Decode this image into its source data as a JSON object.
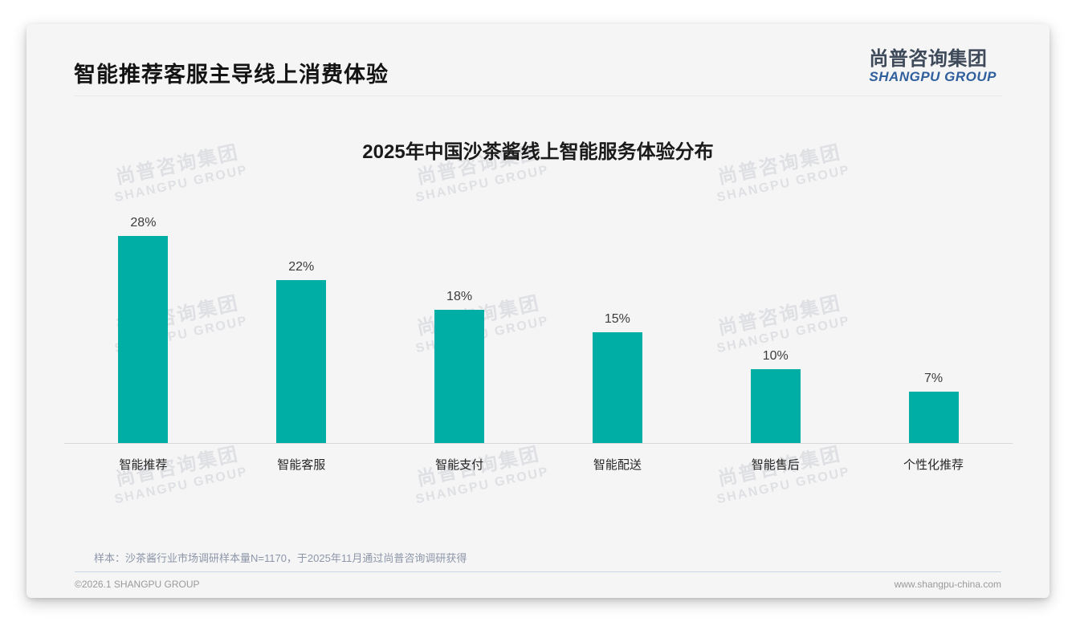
{
  "page": {
    "header": {
      "title": "智能推荐客服主导线上消费体验"
    },
    "logo": {
      "cn": "尚普咨询集团",
      "en": "SHANGPU GROUP"
    },
    "watermark": {
      "cn": "尚普咨询集团",
      "en": "SHANGPU GROUP"
    },
    "footer": {
      "note": "样本：沙茶酱行业市场调研样本量N=1170，于2025年11月通过尚普咨询调研获得",
      "copyright": "©2026.1 SHANGPU GROUP",
      "website": "www.shangpu-china.com"
    }
  },
  "colors": {
    "bar": "#00AEA6",
    "logo_cn": "#3e4a59",
    "logo_en": "#2f5f9c",
    "note": "#8d96a8"
  },
  "chart_data": {
    "type": "bar",
    "title": "2025年中国沙茶酱线上智能服务体验分布",
    "categories": [
      "智能推荐",
      "智能客服",
      "智能支付",
      "智能配送",
      "智能售后",
      "个性化推荐"
    ],
    "values": [
      28,
      22,
      18,
      15,
      10,
      7
    ],
    "data_labels": [
      "28%",
      "22%",
      "18%",
      "15%",
      "10%",
      "7%"
    ],
    "unit": "%",
    "xlabel": "",
    "ylabel": "",
    "ylim": [
      0,
      30
    ],
    "grid": false,
    "legend": false,
    "bar_color": "#00AEA6"
  }
}
